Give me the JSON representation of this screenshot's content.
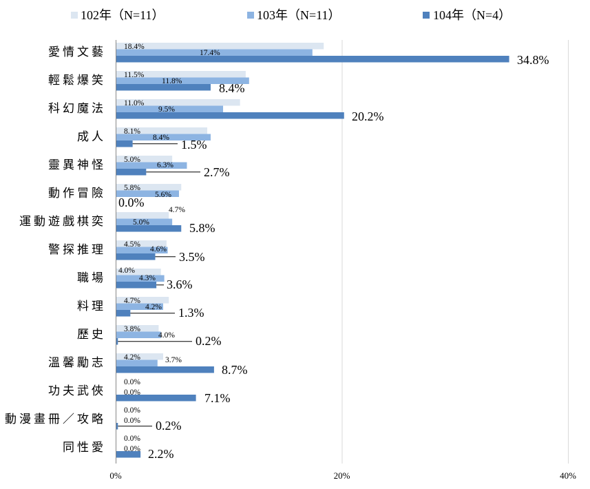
{
  "chart_data": {
    "type": "bar",
    "orientation": "horizontal",
    "categories": [
      "愛情文藝",
      "輕鬆爆笑",
      "科幻魔法",
      "成人",
      "靈異神怪",
      "動作冒險",
      "運動遊戲棋奕",
      "警探推理",
      "職場",
      "料理",
      "歷史",
      "溫馨勵志",
      "功夫武俠",
      "動漫畫冊／攻略",
      "同性愛"
    ],
    "series": [
      {
        "name": "102年（N=11）",
        "color": "#dce6f1",
        "values": [
          18.4,
          11.5,
          11.0,
          8.1,
          5.0,
          5.8,
          4.7,
          4.5,
          4.0,
          4.7,
          3.8,
          4.2,
          0.0,
          0.0,
          0.0
        ],
        "labels": [
          "18.4%",
          "11.5%",
          "11.0%",
          "8.1%",
          "5.0%",
          "5.8%",
          "4.7%",
          "4.5%",
          "4.0%",
          "4.7%",
          "3.8%",
          "4.2%",
          "0.0%",
          "0.0%",
          "0.0%"
        ]
      },
      {
        "name": "103年（N=11）",
        "color": "#8db4e2",
        "values": [
          17.4,
          11.8,
          9.5,
          8.4,
          6.3,
          5.6,
          5.0,
          4.6,
          4.3,
          4.2,
          4.0,
          3.7,
          0.0,
          0.0,
          0.0
        ],
        "labels": [
          "17.4%",
          "11.8%",
          "9.5%",
          "8.4%",
          "6.3%",
          "5.6%",
          "5.0%",
          "4.6%",
          "4.3%",
          "4.2%",
          "4.0%",
          "3.7%",
          "0.0%",
          "0.0%",
          "0.0%"
        ]
      },
      {
        "name": "104年（N=4）",
        "color": "#4f81bd",
        "values": [
          34.8,
          8.4,
          20.2,
          1.5,
          2.7,
          0.0,
          5.8,
          3.5,
          3.6,
          1.3,
          0.2,
          8.7,
          7.1,
          0.2,
          2.2
        ],
        "labels": [
          "34.8%",
          "8.4%",
          "20.2%",
          "1.5%",
          "2.7%",
          "0.0%",
          "5.8%",
          "3.5%",
          "3.6%",
          "1.3%",
          "0.2%",
          "8.7%",
          "7.1%",
          "0.2%",
          "2.2%"
        ]
      }
    ],
    "xlim": [
      0,
      40
    ],
    "x_ticks": [
      "0%",
      "20%",
      "40%"
    ],
    "grid": true,
    "legend_position": "top"
  }
}
